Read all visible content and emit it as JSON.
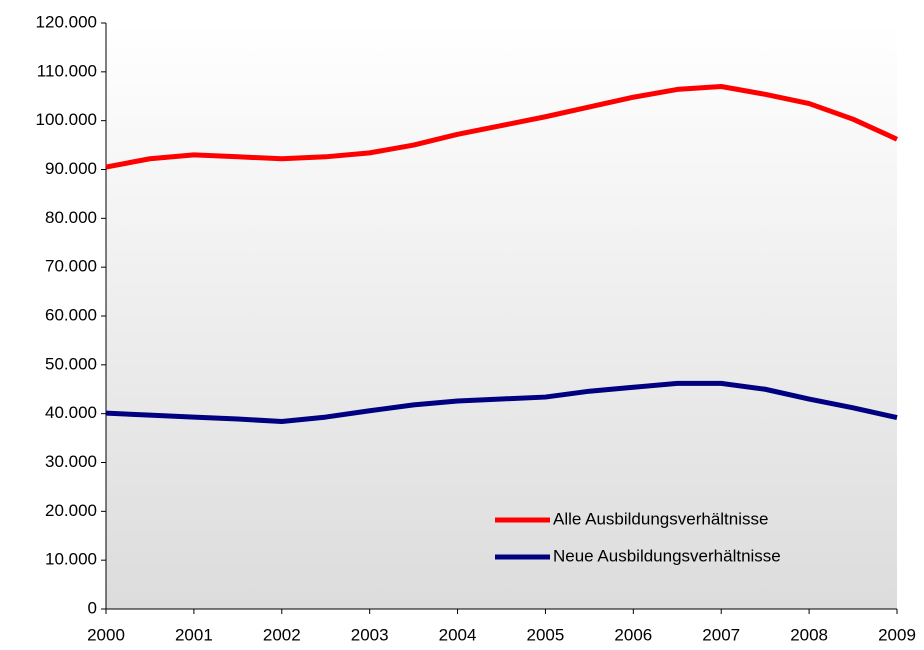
{
  "chart_data": {
    "type": "line",
    "x": [
      2000,
      2000.5,
      2001,
      2001.5,
      2002,
      2002.5,
      2003,
      2003.5,
      2004,
      2004.5,
      2005,
      2005.5,
      2006,
      2006.5,
      2007,
      2007.5,
      2008,
      2008.5,
      2009
    ],
    "series": [
      {
        "name": "Alle Ausbildungsverhältnisse",
        "color": "#ff0000",
        "values": [
          90500,
          92200,
          93000,
          92600,
          92200,
          92600,
          93400,
          95000,
          97200,
          99000,
          100800,
          102800,
          104800,
          106400,
          107000,
          105400,
          103500,
          100300,
          96200
        ]
      },
      {
        "name": "Neue Ausbildungsverhältnisse",
        "color": "#000080",
        "values": [
          40100,
          39700,
          39300,
          38900,
          38400,
          39300,
          40600,
          41800,
          42600,
          43000,
          43400,
          44600,
          45400,
          46200,
          46200,
          45000,
          43000,
          41200,
          39200
        ]
      }
    ],
    "xlim": [
      2000,
      2009
    ],
    "xticks": [
      2000,
      2001,
      2002,
      2003,
      2004,
      2005,
      2006,
      2007,
      2008,
      2009
    ],
    "ylim": [
      0,
      120000
    ],
    "yticks": [
      0,
      {
        "value": 10000,
        "label": "10.000"
      },
      {
        "value": 20000,
        "label": "20.000"
      },
      {
        "value": 30000,
        "label": "30.000"
      },
      {
        "value": 40000,
        "label": "40.000"
      },
      {
        "value": 50000,
        "label": "50.000"
      },
      {
        "value": 60000,
        "label": "60.000"
      },
      {
        "value": 70000,
        "label": "70.000"
      },
      {
        "value": 80000,
        "label": "80.000"
      },
      {
        "value": 90000,
        "label": "90.000"
      },
      {
        "value": 100000,
        "label": "100.000"
      },
      {
        "value": 110000,
        "label": "110.000"
      },
      {
        "value": 120000,
        "label": "120.000"
      }
    ],
    "legend": "lower right"
  }
}
